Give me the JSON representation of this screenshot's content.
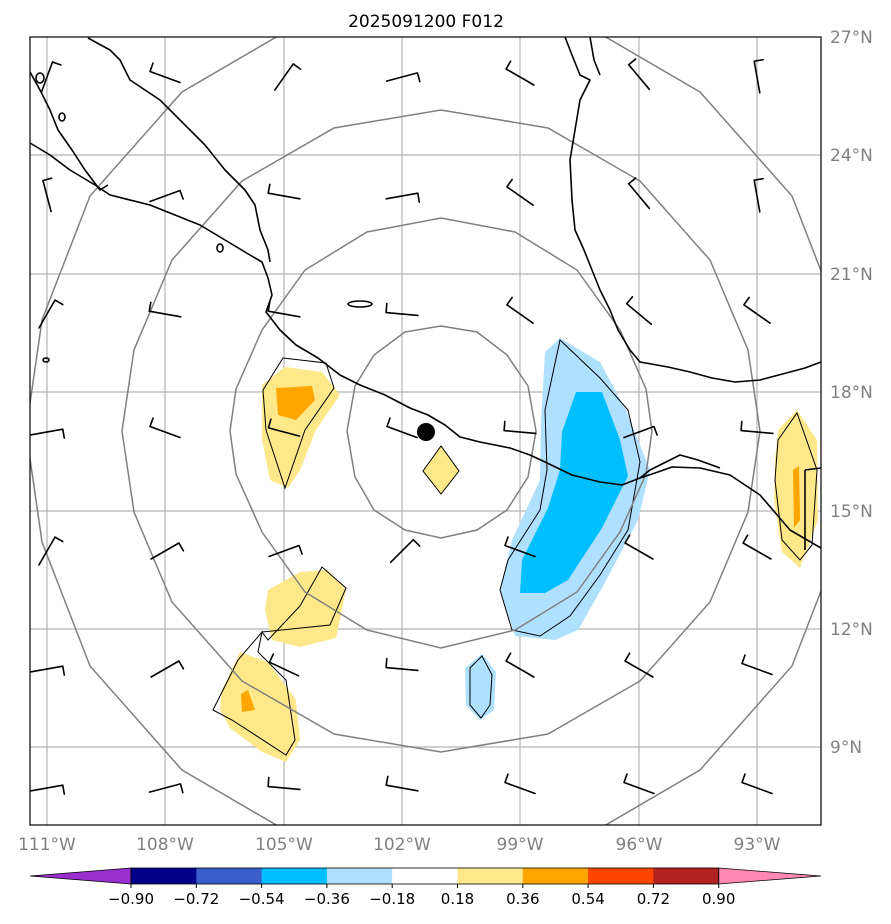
{
  "title": "2025091200 F012",
  "lat_labels": [
    "27°N",
    "24°N",
    "21°N",
    "18°N",
    "15°N",
    "12°N",
    "9°N"
  ],
  "lon_labels": [
    "111°W",
    "108°W",
    "105°W",
    "102°W",
    "99°W",
    "96°W",
    "93°W"
  ],
  "colorbar": {
    "ticks": [
      "−0.90",
      "−0.72",
      "−0.54",
      "−0.36",
      "−0.18",
      "0.18",
      "0.36",
      "0.54",
      "0.72",
      "0.90"
    ],
    "colors": [
      "#9b30d0",
      "#00008b",
      "#3a5fcd",
      "#00bfff",
      "#b0e0ff",
      "#ffffff",
      "#ffe88a",
      "#ffa500",
      "#ff4500",
      "#b22222",
      "#ff88b4"
    ]
  },
  "storm_center": {
    "lat": 17.0,
    "lon": -101.4
  },
  "colors": {
    "grid": "#b3b3b3",
    "range_rings": "#808080",
    "coast": "#000000",
    "label": "#808080"
  }
}
